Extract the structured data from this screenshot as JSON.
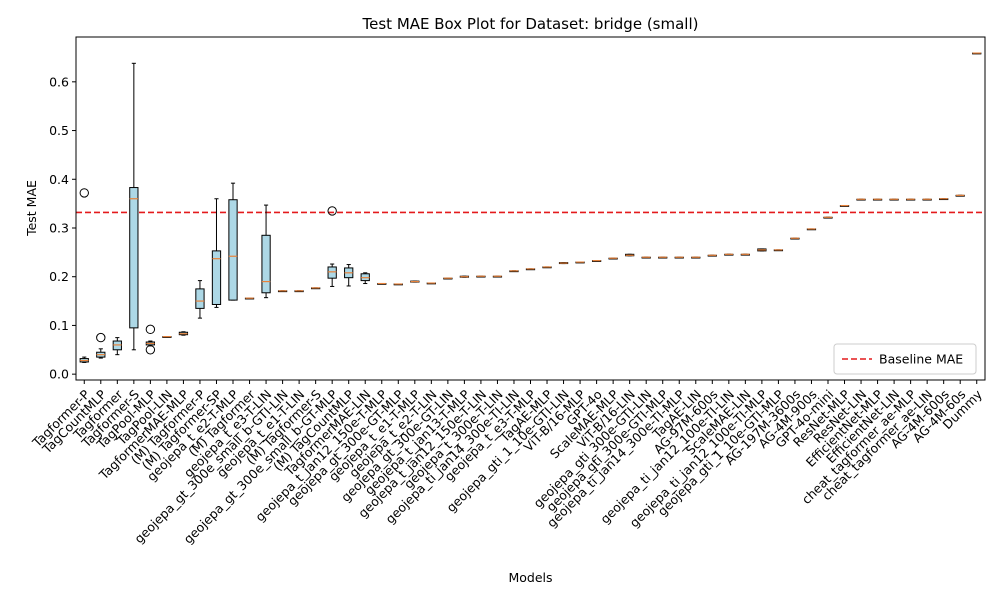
{
  "chart_data": {
    "type": "box",
    "title": "Test MAE Box Plot for Dataset: bridge (small)",
    "xlabel": "Models",
    "ylabel": "Test MAE",
    "ylim": [
      -0.012,
      0.692
    ],
    "yticks": [
      0.0,
      0.1,
      0.2,
      0.3,
      0.4,
      0.5,
      0.6
    ],
    "ytick_labels": [
      "0.0",
      "0.1",
      "0.2",
      "0.3",
      "0.4",
      "0.5",
      "0.6"
    ],
    "baseline": {
      "value": 0.332,
      "label": "Baseline MAE",
      "color": "#e41a1c"
    },
    "legend_position": "lower-right",
    "grid": false,
    "colors": {
      "box_fill": "#add8e6",
      "median": "#e8823a",
      "baseline": "#e41a1c"
    },
    "models": [
      {
        "name": "Tagformer-P",
        "q1": 0.025,
        "median": 0.028,
        "q3": 0.032,
        "whisker_low": 0.024,
        "whisker_high": 0.035,
        "outliers": [
          0.372
        ]
      },
      {
        "name": "TagCountMLP",
        "q1": 0.035,
        "median": 0.04,
        "q3": 0.045,
        "whisker_low": 0.033,
        "whisker_high": 0.052,
        "outliers": [
          0.075
        ]
      },
      {
        "name": "Tagformer",
        "q1": 0.05,
        "median": 0.06,
        "q3": 0.068,
        "whisker_low": 0.04,
        "whisker_high": 0.075,
        "outliers": []
      },
      {
        "name": "Tagformer-S",
        "q1": 0.095,
        "median": 0.36,
        "q3": 0.383,
        "whisker_low": 0.05,
        "whisker_high": 0.638,
        "outliers": []
      },
      {
        "name": "TagPool-MLP",
        "q1": 0.06,
        "median": 0.063,
        "q3": 0.066,
        "whisker_low": 0.058,
        "whisker_high": 0.068,
        "outliers": [
          0.092,
          0.05
        ]
      },
      {
        "name": "TagPool-LIN",
        "q1": 0.077,
        "median": 0.077,
        "q3": 0.077,
        "whisker_low": 0.077,
        "whisker_high": 0.077,
        "outliers": []
      },
      {
        "name": "TagformerMAE-MLP",
        "q1": 0.081,
        "median": 0.083,
        "q3": 0.086,
        "whisker_low": 0.08,
        "whisker_high": 0.087,
        "outliers": []
      },
      {
        "name": "(M) Tagformer-P",
        "q1": 0.135,
        "median": 0.15,
        "q3": 0.175,
        "whisker_low": 0.115,
        "whisker_high": 0.192,
        "outliers": []
      },
      {
        "name": "(M) Tagformer-SP",
        "q1": 0.143,
        "median": 0.237,
        "q3": 0.253,
        "whisker_low": 0.137,
        "whisker_high": 0.36,
        "outliers": []
      },
      {
        "name": "geojepa_t_e2-T-MLP",
        "q1": 0.152,
        "median": 0.242,
        "q3": 0.358,
        "whisker_low": 0.152,
        "whisker_high": 0.392,
        "outliers": []
      },
      {
        "name": "(M) Tagformer",
        "q1": 0.156,
        "median": 0.156,
        "q3": 0.156,
        "whisker_low": 0.156,
        "whisker_high": 0.156,
        "outliers": []
      },
      {
        "name": "geojepa_t_e3-T-LIN",
        "q1": 0.167,
        "median": 0.19,
        "q3": 0.285,
        "whisker_low": 0.157,
        "whisker_high": 0.347,
        "outliers": []
      },
      {
        "name": "geojepa_gt_300e_small_b-GTI-LIN",
        "q1": 0.171,
        "median": 0.171,
        "q3": 0.171,
        "whisker_low": 0.171,
        "whisker_high": 0.171,
        "outliers": []
      },
      {
        "name": "geojepa_t_e1-T-LIN",
        "q1": 0.171,
        "median": 0.171,
        "q3": 0.171,
        "whisker_low": 0.171,
        "whisker_high": 0.171,
        "outliers": []
      },
      {
        "name": "(M) Tagformer-S",
        "q1": 0.177,
        "median": 0.177,
        "q3": 0.177,
        "whisker_low": 0.177,
        "whisker_high": 0.177,
        "outliers": []
      },
      {
        "name": "geojepa_gt_300e_small_b-GT-MLP",
        "q1": 0.197,
        "median": 0.21,
        "q3": 0.22,
        "whisker_low": 0.18,
        "whisker_high": 0.226,
        "outliers": [
          0.335
        ]
      },
      {
        "name": "(M) TagCountMLP",
        "q1": 0.198,
        "median": 0.208,
        "q3": 0.218,
        "whisker_low": 0.181,
        "whisker_high": 0.225,
        "outliers": []
      },
      {
        "name": "TagformerMAE-LIN",
        "q1": 0.192,
        "median": 0.198,
        "q3": 0.206,
        "whisker_low": 0.186,
        "whisker_high": 0.208,
        "outliers": []
      },
      {
        "name": "geojepa_t_jan12_150e-T-MLP",
        "q1": 0.186,
        "median": 0.186,
        "q3": 0.186,
        "whisker_low": 0.186,
        "whisker_high": 0.186,
        "outliers": []
      },
      {
        "name": "geojepa_gt_300e-GT-MLP",
        "q1": 0.185,
        "median": 0.185,
        "q3": 0.185,
        "whisker_low": 0.185,
        "whisker_high": 0.185,
        "outliers": []
      },
      {
        "name": "geojepa_t_e1-T-MLP",
        "q1": 0.189,
        "median": 0.19,
        "q3": 0.191,
        "whisker_low": 0.189,
        "whisker_high": 0.191,
        "outliers": []
      },
      {
        "name": "geojepa_t_e2-T-LIN",
        "q1": 0.187,
        "median": 0.187,
        "q3": 0.187,
        "whisker_low": 0.187,
        "whisker_high": 0.187,
        "outliers": []
      },
      {
        "name": "geojepa_gt_300e-GT-LIN",
        "q1": 0.197,
        "median": 0.197,
        "q3": 0.197,
        "whisker_low": 0.197,
        "whisker_high": 0.197,
        "outliers": []
      },
      {
        "name": "geojepa_t_jan13-T-MLP",
        "q1": 0.199,
        "median": 0.2,
        "q3": 0.201,
        "whisker_low": 0.199,
        "whisker_high": 0.201,
        "outliers": []
      },
      {
        "name": "geojepa_t_jan12_150e-T-LIN",
        "q1": 0.201,
        "median": 0.201,
        "q3": 0.201,
        "whisker_low": 0.201,
        "whisker_high": 0.201,
        "outliers": []
      },
      {
        "name": "geojepa_t_300e-T-LIN",
        "q1": 0.201,
        "median": 0.201,
        "q3": 0.201,
        "whisker_low": 0.201,
        "whisker_high": 0.201,
        "outliers": []
      },
      {
        "name": "geojepa_ti_jan14_300e-TI-LIN",
        "q1": 0.212,
        "median": 0.212,
        "q3": 0.212,
        "whisker_low": 0.212,
        "whisker_high": 0.212,
        "outliers": []
      },
      {
        "name": "geojepa_t_e3-T-MLP",
        "q1": 0.216,
        "median": 0.216,
        "q3": 0.216,
        "whisker_low": 0.216,
        "whisker_high": 0.216,
        "outliers": []
      },
      {
        "name": "TagAE-MLP",
        "q1": 0.22,
        "median": 0.22,
        "q3": 0.22,
        "whisker_low": 0.22,
        "whisker_high": 0.22,
        "outliers": []
      },
      {
        "name": "geojepa_gti_1_10e-GTI-LIN",
        "q1": 0.227,
        "median": 0.228,
        "q3": 0.229,
        "whisker_low": 0.227,
        "whisker_high": 0.229,
        "outliers": []
      },
      {
        "name": "ViT-B/16-MLP",
        "q1": 0.23,
        "median": 0.23,
        "q3": 0.23,
        "whisker_low": 0.23,
        "whisker_high": 0.23,
        "outliers": []
      },
      {
        "name": "GPT-4o",
        "q1": 0.233,
        "median": 0.233,
        "q3": 0.233,
        "whisker_low": 0.233,
        "whisker_high": 0.233,
        "outliers": []
      },
      {
        "name": "ScaleMAE-MLP",
        "q1": 0.238,
        "median": 0.238,
        "q3": 0.238,
        "whisker_low": 0.238,
        "whisker_high": 0.238,
        "outliers": []
      },
      {
        "name": "ViT-B/16-LIN",
        "q1": 0.243,
        "median": 0.244,
        "q3": 0.246,
        "whisker_low": 0.243,
        "whisker_high": 0.246,
        "outliers": []
      },
      {
        "name": "geojepa_gti_300e-GTI-LIN",
        "q1": 0.24,
        "median": 0.24,
        "q3": 0.24,
        "whisker_low": 0.24,
        "whisker_high": 0.24,
        "outliers": []
      },
      {
        "name": "geojepa_gti_300e-GTI-MLP",
        "q1": 0.24,
        "median": 0.24,
        "q3": 0.24,
        "whisker_low": 0.24,
        "whisker_high": 0.24,
        "outliers": []
      },
      {
        "name": "geojepa_ti_jan14_300e-TI-MLP",
        "q1": 0.24,
        "median": 0.24,
        "q3": 0.24,
        "whisker_low": 0.24,
        "whisker_high": 0.24,
        "outliers": []
      },
      {
        "name": "TagAE-LIN",
        "q1": 0.24,
        "median": 0.24,
        "q3": 0.24,
        "whisker_low": 0.24,
        "whisker_high": 0.24,
        "outliers": []
      },
      {
        "name": "AG-97M-600s",
        "q1": 0.244,
        "median": 0.244,
        "q3": 0.244,
        "whisker_low": 0.244,
        "whisker_high": 0.244,
        "outliers": []
      },
      {
        "name": "geojepa_ti_jan12_100e-TI-LIN",
        "q1": 0.246,
        "median": 0.246,
        "q3": 0.246,
        "whisker_low": 0.246,
        "whisker_high": 0.246,
        "outliers": []
      },
      {
        "name": "ScaleMAE-LIN",
        "q1": 0.246,
        "median": 0.246,
        "q3": 0.246,
        "whisker_low": 0.246,
        "whisker_high": 0.246,
        "outliers": []
      },
      {
        "name": "geojepa_ti_jan12_100e-TI-MLP",
        "q1": 0.253,
        "median": 0.255,
        "q3": 0.257,
        "whisker_low": 0.253,
        "whisker_high": 0.257,
        "outliers": []
      },
      {
        "name": "geojepa_gti_1_10e-GTI-MLP",
        "q1": 0.255,
        "median": 0.255,
        "q3": 0.255,
        "whisker_low": 0.255,
        "whisker_high": 0.255,
        "outliers": []
      },
      {
        "name": "AG-197M-3600s",
        "q1": 0.279,
        "median": 0.279,
        "q3": 0.279,
        "whisker_low": 0.279,
        "whisker_high": 0.279,
        "outliers": []
      },
      {
        "name": "AG-4M-900s",
        "q1": 0.298,
        "median": 0.298,
        "q3": 0.298,
        "whisker_low": 0.298,
        "whisker_high": 0.298,
        "outliers": []
      },
      {
        "name": "GPT-4o-mini",
        "q1": 0.322,
        "median": 0.322,
        "q3": 0.322,
        "whisker_low": 0.322,
        "whisker_high": 0.322,
        "outliers": []
      },
      {
        "name": "ResNet-MLP",
        "q1": 0.346,
        "median": 0.346,
        "q3": 0.346,
        "whisker_low": 0.346,
        "whisker_high": 0.346,
        "outliers": []
      },
      {
        "name": "ResNet-LIN",
        "q1": 0.359,
        "median": 0.359,
        "q3": 0.359,
        "whisker_low": 0.359,
        "whisker_high": 0.359,
        "outliers": []
      },
      {
        "name": "EfficientNet-MLP",
        "q1": 0.359,
        "median": 0.359,
        "q3": 0.359,
        "whisker_low": 0.359,
        "whisker_high": 0.359,
        "outliers": []
      },
      {
        "name": "EfficientNet-LIN",
        "q1": 0.359,
        "median": 0.359,
        "q3": 0.359,
        "whisker_low": 0.359,
        "whisker_high": 0.359,
        "outliers": []
      },
      {
        "name": "cheat_tagformer_ae-MLP",
        "q1": 0.359,
        "median": 0.359,
        "q3": 0.359,
        "whisker_low": 0.359,
        "whisker_high": 0.359,
        "outliers": []
      },
      {
        "name": "cheat_tagformer_ae-LIN",
        "q1": 0.359,
        "median": 0.359,
        "q3": 0.359,
        "whisker_low": 0.359,
        "whisker_high": 0.359,
        "outliers": []
      },
      {
        "name": "AG-4M-600s",
        "q1": 0.36,
        "median": 0.36,
        "q3": 0.36,
        "whisker_low": 0.36,
        "whisker_high": 0.36,
        "outliers": []
      },
      {
        "name": "AG-4M-60s",
        "q1": 0.367,
        "median": 0.367,
        "q3": 0.367,
        "whisker_low": 0.367,
        "whisker_high": 0.367,
        "outliers": []
      },
      {
        "name": "Dummy",
        "q1": 0.659,
        "median": 0.659,
        "q3": 0.659,
        "whisker_low": 0.659,
        "whisker_high": 0.659,
        "outliers": []
      }
    ]
  }
}
